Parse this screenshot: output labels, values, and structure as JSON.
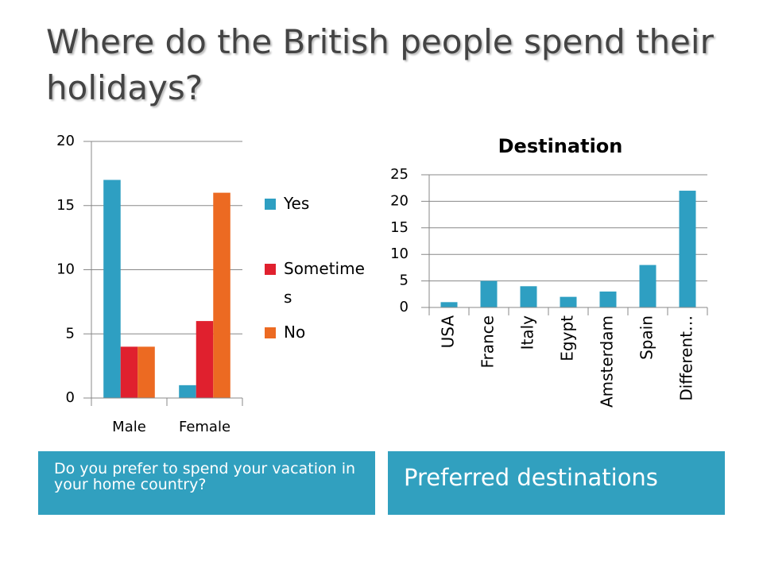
{
  "title": "Where do the British people spend their holidays?",
  "captions": [
    "Do you prefer to spend your vacation in your home country?",
    "Preferred destinations"
  ],
  "chart_data": [
    {
      "type": "bar",
      "categories": [
        "Male",
        "Female"
      ],
      "series": [
        {
          "name": "Yes",
          "color": "#2e9fc2",
          "values": [
            17,
            1
          ]
        },
        {
          "name": "Sometimes",
          "color": "#e0202e",
          "values": [
            4,
            6
          ]
        },
        {
          "name": "No",
          "color": "#ec6a22",
          "values": [
            4,
            16
          ]
        }
      ],
      "ylim": [
        0,
        20
      ],
      "yticks": [
        0,
        5,
        10,
        15,
        20
      ],
      "grid": true,
      "legend": "right"
    },
    {
      "type": "bar",
      "title": "Destination",
      "categories": [
        "USA",
        "France",
        "Italy",
        "Egypt",
        "Amsterdam",
        "Spain",
        "Different…"
      ],
      "values": [
        1,
        5,
        4,
        2,
        3,
        8,
        22
      ],
      "color": "#2e9fc2",
      "ylim": [
        0,
        25
      ],
      "yticks": [
        0,
        5,
        10,
        15,
        20,
        25
      ],
      "grid": true
    }
  ]
}
